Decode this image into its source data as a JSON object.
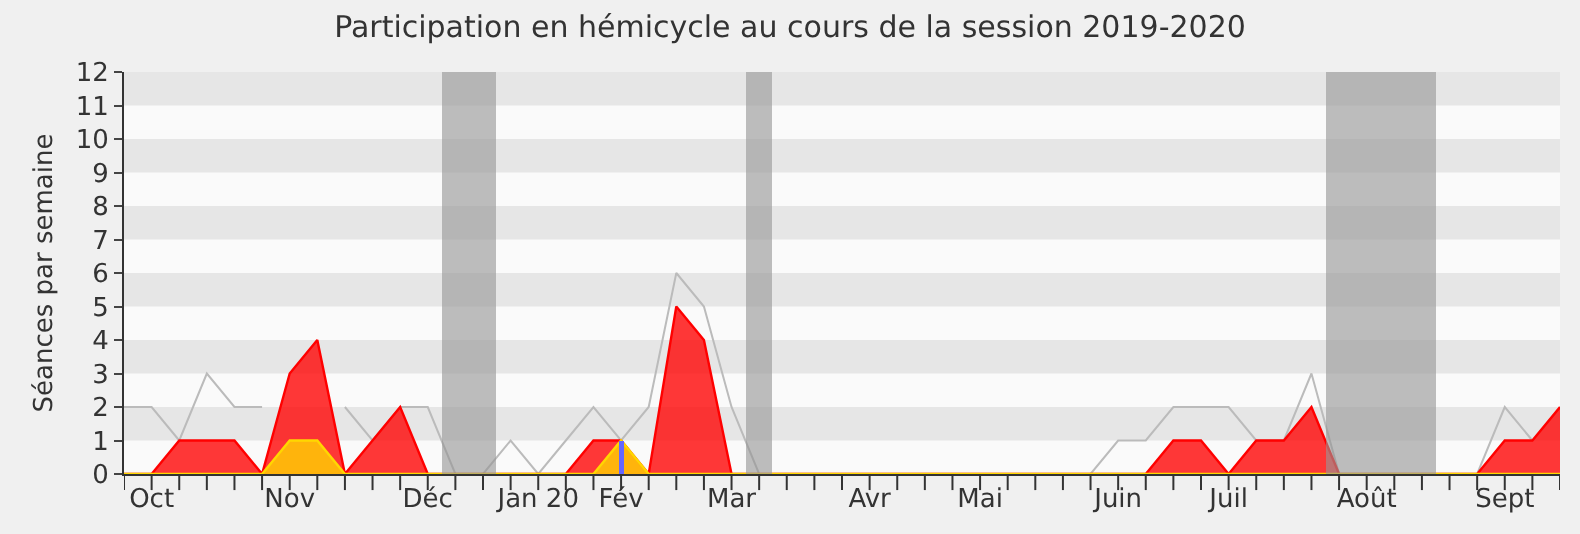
{
  "chart_data": {
    "type": "area",
    "title": "Participation en hémicycle au cours de la session 2019-2020",
    "ylabel": "Séances par semaine",
    "categories": [
      null,
      "Oct",
      null,
      null,
      null,
      null,
      "Nov",
      null,
      null,
      null,
      null,
      "Déc",
      null,
      null,
      null,
      "Jan 20",
      null,
      null,
      "Fév",
      null,
      null,
      null,
      "Mar",
      null,
      null,
      null,
      null,
      "Avr",
      null,
      null,
      null,
      "Mai",
      null,
      null,
      null,
      null,
      "Juin",
      null,
      null,
      null,
      "Juil",
      null,
      null,
      null,
      null,
      "Août",
      null,
      null,
      null,
      null,
      "Sept",
      null,
      null
    ],
    "series": [
      {
        "type": "line",
        "color": "#bbbbbb",
        "values": [
          2,
          2,
          1,
          3,
          2,
          2,
          null,
          null,
          2,
          1,
          2,
          2,
          0,
          0,
          1,
          0,
          1,
          2,
          1,
          2,
          6,
          5,
          2,
          0,
          0,
          0,
          0,
          0,
          0,
          0,
          0,
          0,
          0,
          0,
          0,
          0,
          1,
          1,
          2,
          2,
          2,
          1,
          1,
          3,
          0,
          0,
          0,
          0,
          0,
          0,
          2,
          1,
          null
        ]
      },
      {
        "color": "#ff0000",
        "values": [
          0,
          0,
          1,
          1,
          1,
          0,
          3,
          4,
          0,
          1,
          2,
          0,
          0,
          0,
          0,
          0,
          0,
          1,
          1,
          0,
          5,
          4,
          0,
          0,
          0,
          0,
          0,
          0,
          0,
          0,
          0,
          0,
          0,
          0,
          0,
          0,
          0,
          0,
          1,
          1,
          0,
          1,
          1,
          2,
          0,
          0,
          0,
          0,
          0,
          0,
          1,
          1,
          2
        ]
      },
      {
        "color": "#ffd700",
        "values": [
          0,
          0,
          0,
          0,
          0,
          0,
          1,
          1,
          0,
          0,
          0,
          0,
          0,
          0,
          0,
          0,
          0,
          0,
          1,
          0,
          0,
          0,
          0,
          0,
          0,
          0,
          0,
          0,
          0,
          0,
          0,
          0,
          0,
          0,
          0,
          0,
          0,
          0,
          0,
          0,
          0,
          0,
          0,
          0,
          0,
          0,
          0,
          0,
          0,
          0,
          0,
          0,
          0
        ]
      },
      {
        "type": "bar",
        "color": "#6666ff",
        "values": [
          0,
          0,
          0,
          0,
          0,
          0,
          0,
          0,
          0,
          0,
          0,
          0,
          0,
          0,
          0,
          0,
          0,
          0,
          1,
          0,
          0,
          0,
          0,
          0,
          0,
          0,
          0,
          0,
          0,
          0,
          0,
          0,
          0,
          0,
          0,
          0,
          0,
          0,
          0,
          0,
          0,
          0,
          0,
          0,
          0,
          0,
          0,
          0,
          0,
          0,
          0,
          0,
          0
        ]
      }
    ],
    "ylim": [
      0,
      12
    ],
    "yticks": [
      0,
      1,
      2,
      3,
      4,
      5,
      6,
      7,
      8,
      9,
      10,
      11,
      12
    ],
    "legend": false
  }
}
